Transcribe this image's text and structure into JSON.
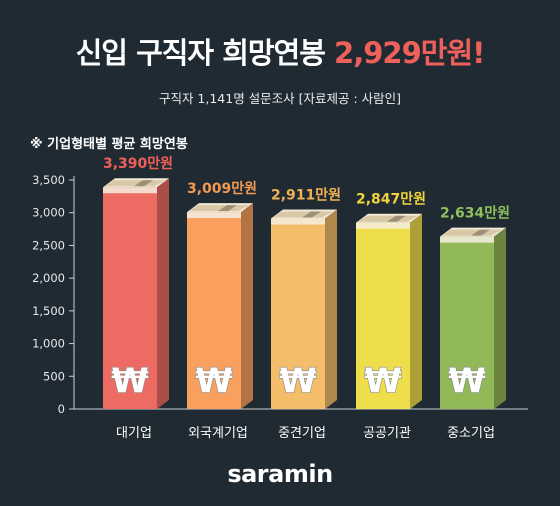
{
  "title": {
    "main": "신입 구직자 희망연봉",
    "highlight": "2,929만원!"
  },
  "subtitle": "구직자 1,141명 설문조사 [자료제공 : 사람인]",
  "chart_label": "※ 기업형태별 평균 희망연봉",
  "brand": "saramin",
  "colors": {
    "background": "#1f2a33",
    "highlight": "#f0605a"
  },
  "currency_symbol": "₩",
  "chart_data": {
    "type": "bar",
    "categories": [
      "대기업",
      "외국계기업",
      "중견기업",
      "공공기관",
      "중소기업"
    ],
    "values": [
      3390,
      3009,
      2911,
      2847,
      2634
    ],
    "value_labels": [
      "3,390만원",
      "3,009만원",
      "2,911만원",
      "2,847만원",
      "2,634만원"
    ],
    "yticks": [
      0,
      500,
      1000,
      1500,
      2000,
      2500,
      3000,
      3500
    ],
    "ytick_labels": [
      "0",
      "500",
      "1,000",
      "1,500",
      "2,000",
      "2,500",
      "3,000",
      "3,500"
    ],
    "ylim": [
      0,
      3500
    ],
    "bar_colors": [
      "#ee6b64",
      "#f9a05e",
      "#f3bd6a",
      "#efde4b",
      "#92b957"
    ],
    "label_colors": [
      "#f0605a",
      "#f39a52",
      "#f2b253",
      "#f2d33c",
      "#8fc15a"
    ],
    "title": "※ 기업형태별 평균 희망연봉",
    "xlabel": "",
    "ylabel": ""
  }
}
